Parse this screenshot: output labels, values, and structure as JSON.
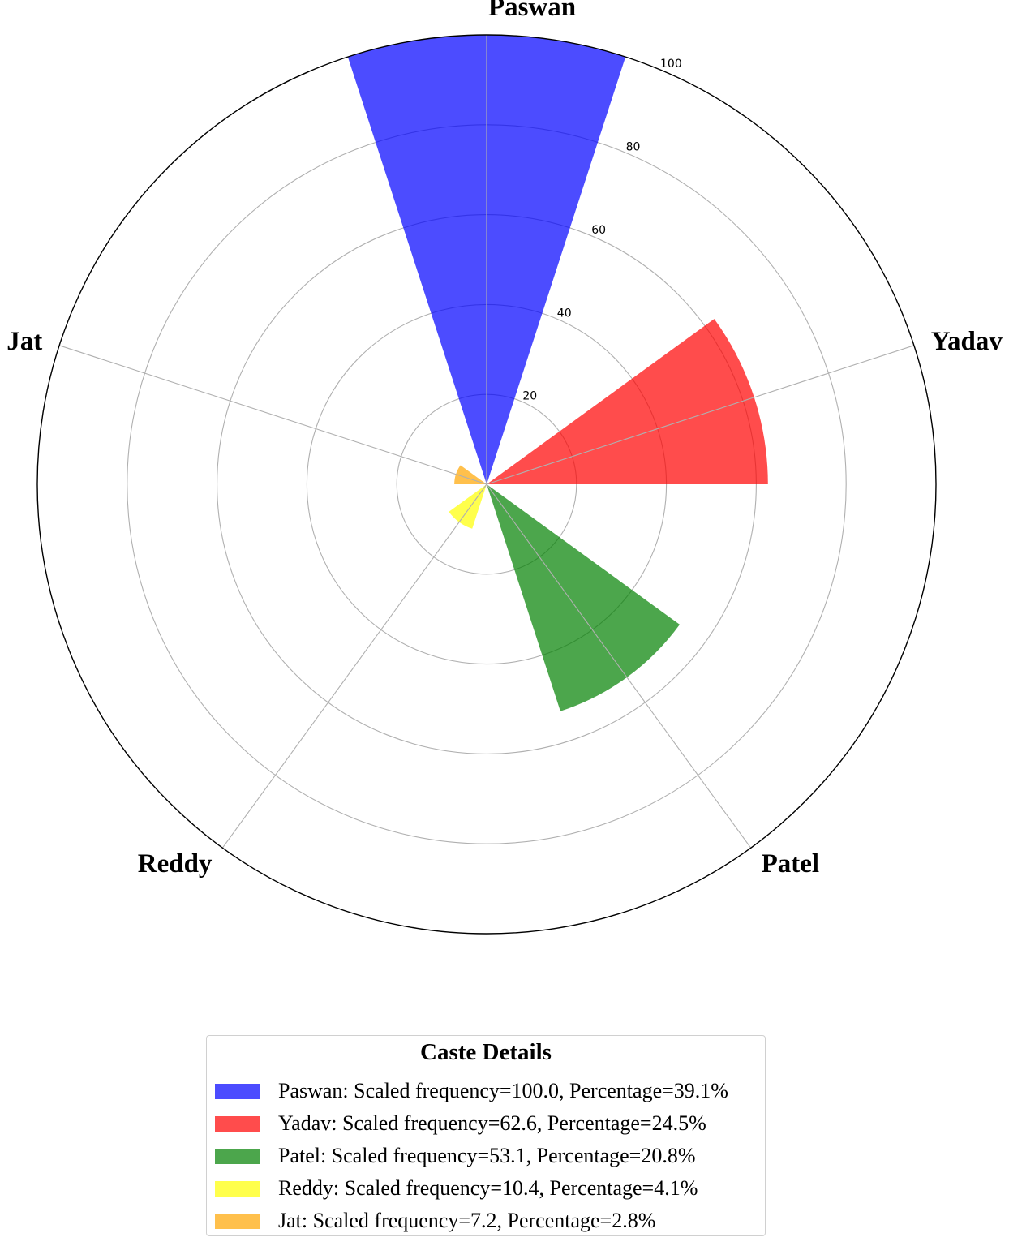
{
  "chart_data": {
    "type": "polar-bar",
    "categories": [
      "Paswan",
      "Yadav",
      "Patel",
      "Reddy",
      "Jat"
    ],
    "series": [
      {
        "values": [
          100.0,
          62.6,
          53.1,
          10.4,
          7.2
        ],
        "colors": [
          "#0000ff",
          "#ff0000",
          "#008000",
          "#ffff00",
          "#ffa500"
        ],
        "opacity": 0.7
      }
    ],
    "radial_ticks": [
      "20",
      "40",
      "60",
      "80",
      "100"
    ],
    "radial_tick_values": [
      20,
      40,
      60,
      80,
      100
    ],
    "rlim": [
      0,
      100
    ],
    "grid": true,
    "legend": {
      "title": "Caste Details",
      "placement": "bottom-center",
      "entries": [
        {
          "label": "Paswan: Scaled frequency=100.0, Percentage=39.1%",
          "color": "#0000ff"
        },
        {
          "label": "Yadav: Scaled frequency=62.6, Percentage=24.5%",
          "color": "#ff0000"
        },
        {
          "label": "Patel: Scaled frequency=53.1, Percentage=20.8%",
          "color": "#008000"
        },
        {
          "label": "Reddy: Scaled frequency=10.4, Percentage=4.1%",
          "color": "#ffff00"
        },
        {
          "label": "Jat: Scaled frequency=7.2, Percentage=2.8%",
          "color": "#ffa500"
        }
      ]
    }
  }
}
